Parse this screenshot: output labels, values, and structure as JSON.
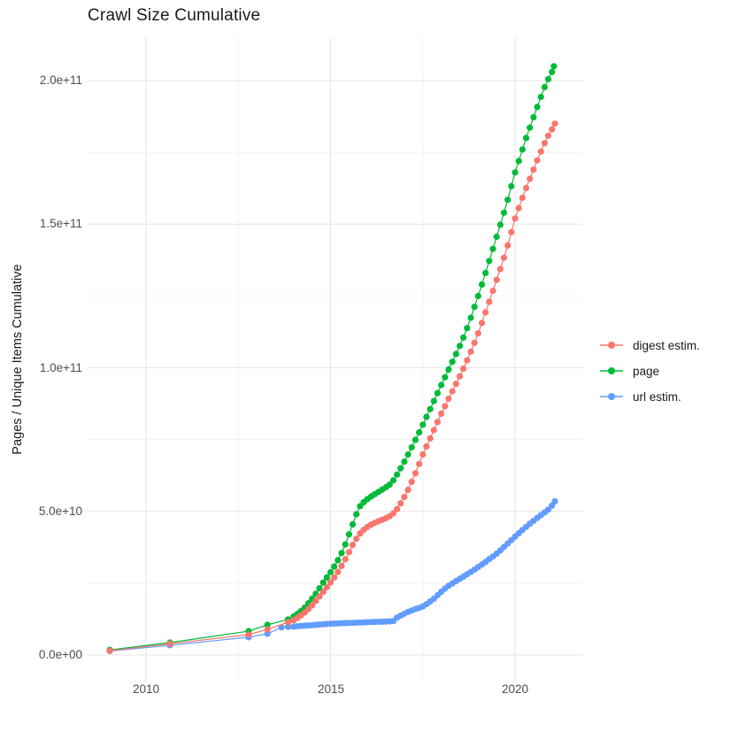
{
  "title": "Crawl Size Cumulative",
  "legend": {
    "items": [
      {
        "label": "digest estim.",
        "color": "#F8766D"
      },
      {
        "label": "page",
        "color": "#00BA38"
      },
      {
        "label": "url estim.",
        "color": "#619CFF"
      }
    ]
  },
  "chart_data": {
    "type": "line",
    "title": "Crawl Size Cumulative",
    "xlabel": "",
    "ylabel": "Pages / Unique Items Cumulative",
    "x_unit": "year",
    "y_values_unit": "1e9 (points stored as [year, value-in-billions])",
    "xlim": [
      2008.4,
      2021.8
    ],
    "ylim": [
      0,
      215
    ],
    "grid": true,
    "legend_position": "right",
    "x_ticks_major": [
      2010,
      2015,
      2020
    ],
    "x_tick_labels": [
      "2010",
      "2015",
      "2020"
    ],
    "x_ticks_minor": [
      2012.5,
      2017.5
    ],
    "y_ticks_major": [
      0,
      50,
      100,
      150,
      200
    ],
    "y_tick_labels": [
      "0.0e+00",
      "5.0e+10",
      "1.0e+11",
      "1.5e+11",
      "2.0e+11"
    ],
    "y_ticks_minor": [
      25,
      75,
      125,
      175
    ],
    "series": [
      {
        "name": "digest estim.",
        "color": "#F8766D",
        "points": [
          [
            2009.02,
            1.5
          ],
          [
            2010.65,
            3.9
          ],
          [
            2012.78,
            7.1
          ],
          [
            2013.29,
            8.9
          ],
          [
            2013.85,
            11.4
          ],
          [
            2014.0,
            12.1
          ],
          [
            2014.1,
            12.9
          ],
          [
            2014.2,
            13.8
          ],
          [
            2014.3,
            14.8
          ],
          [
            2014.4,
            16.0
          ],
          [
            2014.5,
            17.3
          ],
          [
            2014.6,
            18.8
          ],
          [
            2014.7,
            20.4
          ],
          [
            2014.8,
            22.0
          ],
          [
            2014.9,
            23.6
          ],
          [
            2015.0,
            25.3
          ],
          [
            2015.1,
            27.0
          ],
          [
            2015.2,
            28.9
          ],
          [
            2015.3,
            31.0
          ],
          [
            2015.4,
            33.3
          ],
          [
            2015.5,
            35.8
          ],
          [
            2015.6,
            38.3
          ],
          [
            2015.7,
            40.5
          ],
          [
            2015.8,
            42.3
          ],
          [
            2015.9,
            43.6
          ],
          [
            2016.0,
            44.6
          ],
          [
            2016.1,
            45.4
          ],
          [
            2016.2,
            46.0
          ],
          [
            2016.3,
            46.6
          ],
          [
            2016.4,
            47.1
          ],
          [
            2016.5,
            47.6
          ],
          [
            2016.6,
            48.3
          ],
          [
            2016.7,
            49.3
          ],
          [
            2016.8,
            50.8
          ],
          [
            2016.9,
            52.8
          ],
          [
            2017.0,
            55.0
          ],
          [
            2017.1,
            57.5
          ],
          [
            2017.2,
            60.3
          ],
          [
            2017.3,
            63.3
          ],
          [
            2017.4,
            66.5
          ],
          [
            2017.5,
            69.8
          ],
          [
            2017.6,
            72.6
          ],
          [
            2017.7,
            75.4
          ],
          [
            2017.8,
            78.3
          ],
          [
            2017.9,
            81.1
          ],
          [
            2018.0,
            84.0
          ],
          [
            2018.1,
            86.6
          ],
          [
            2018.2,
            89.2
          ],
          [
            2018.3,
            91.8
          ],
          [
            2018.4,
            94.4
          ],
          [
            2018.5,
            97.0
          ],
          [
            2018.6,
            99.7
          ],
          [
            2018.7,
            102.6
          ],
          [
            2018.8,
            105.6
          ],
          [
            2018.9,
            108.7
          ],
          [
            2019.0,
            112.0
          ],
          [
            2019.1,
            115.6
          ],
          [
            2019.2,
            119.3
          ],
          [
            2019.3,
            123.0
          ],
          [
            2019.4,
            126.8
          ],
          [
            2019.5,
            130.6
          ],
          [
            2019.6,
            134.4
          ],
          [
            2019.7,
            138.3
          ],
          [
            2019.8,
            142.6
          ],
          [
            2019.9,
            147.2
          ],
          [
            2020.0,
            152.0
          ],
          [
            2020.1,
            155.6
          ],
          [
            2020.2,
            159.2
          ],
          [
            2020.3,
            162.6
          ],
          [
            2020.4,
            165.8
          ],
          [
            2020.5,
            169.0
          ],
          [
            2020.6,
            172.2
          ],
          [
            2020.7,
            175.3
          ],
          [
            2020.8,
            178.2
          ],
          [
            2020.9,
            180.8
          ],
          [
            2021.0,
            183.0
          ],
          [
            2021.08,
            185.0
          ]
        ]
      },
      {
        "name": "page",
        "color": "#00BA38",
        "points": [
          [
            2009.02,
            1.8
          ],
          [
            2010.65,
            4.3
          ],
          [
            2012.78,
            8.3
          ],
          [
            2013.29,
            10.5
          ],
          [
            2013.85,
            12.4
          ],
          [
            2014.0,
            13.4
          ],
          [
            2014.1,
            14.3
          ],
          [
            2014.2,
            15.3
          ],
          [
            2014.3,
            16.5
          ],
          [
            2014.4,
            18.0
          ],
          [
            2014.5,
            19.6
          ],
          [
            2014.6,
            21.3
          ],
          [
            2014.7,
            23.2
          ],
          [
            2014.8,
            25.2
          ],
          [
            2014.9,
            27.0
          ],
          [
            2015.0,
            28.8
          ],
          [
            2015.1,
            30.8
          ],
          [
            2015.2,
            33.0
          ],
          [
            2015.3,
            35.5
          ],
          [
            2015.4,
            38.5
          ],
          [
            2015.5,
            42.0
          ],
          [
            2015.6,
            45.5
          ],
          [
            2015.7,
            49.0
          ],
          [
            2015.8,
            51.8
          ],
          [
            2015.9,
            53.2
          ],
          [
            2016.0,
            54.3
          ],
          [
            2016.1,
            55.2
          ],
          [
            2016.2,
            56.0
          ],
          [
            2016.3,
            56.8
          ],
          [
            2016.4,
            57.6
          ],
          [
            2016.5,
            58.4
          ],
          [
            2016.6,
            59.3
          ],
          [
            2016.7,
            60.8
          ],
          [
            2016.8,
            62.8
          ],
          [
            2016.9,
            65.0
          ],
          [
            2017.0,
            67.3
          ],
          [
            2017.1,
            69.8
          ],
          [
            2017.2,
            72.3
          ],
          [
            2017.3,
            74.9
          ],
          [
            2017.4,
            77.5
          ],
          [
            2017.5,
            80.2
          ],
          [
            2017.6,
            82.9
          ],
          [
            2017.7,
            85.6
          ],
          [
            2017.8,
            88.4
          ],
          [
            2017.9,
            91.2
          ],
          [
            2018.0,
            94.0
          ],
          [
            2018.1,
            96.7
          ],
          [
            2018.2,
            99.4
          ],
          [
            2018.3,
            102.1
          ],
          [
            2018.4,
            104.8
          ],
          [
            2018.5,
            107.6
          ],
          [
            2018.6,
            110.5
          ],
          [
            2018.7,
            113.8
          ],
          [
            2018.8,
            117.4
          ],
          [
            2018.9,
            121.2
          ],
          [
            2019.0,
            125.0
          ],
          [
            2019.1,
            129.0
          ],
          [
            2019.2,
            133.0
          ],
          [
            2019.3,
            137.2
          ],
          [
            2019.4,
            141.4
          ],
          [
            2019.5,
            145.6
          ],
          [
            2019.6,
            149.8
          ],
          [
            2019.7,
            154.0
          ],
          [
            2019.8,
            158.5
          ],
          [
            2019.9,
            163.2
          ],
          [
            2020.0,
            168.0
          ],
          [
            2020.1,
            172.0
          ],
          [
            2020.2,
            176.0
          ],
          [
            2020.3,
            180.0
          ],
          [
            2020.4,
            183.6
          ],
          [
            2020.5,
            187.2
          ],
          [
            2020.6,
            190.8
          ],
          [
            2020.7,
            194.3
          ],
          [
            2020.8,
            197.7
          ],
          [
            2020.9,
            200.5
          ],
          [
            2021.0,
            203.0
          ],
          [
            2021.05,
            205.0
          ]
        ]
      },
      {
        "name": "url estim.",
        "color": "#619CFF",
        "points": [
          [
            2009.02,
            1.4
          ],
          [
            2010.65,
            3.4
          ],
          [
            2012.78,
            6.2
          ],
          [
            2013.29,
            7.4
          ],
          [
            2013.67,
            9.6
          ],
          [
            2013.85,
            9.8
          ],
          [
            2014.0,
            9.9
          ],
          [
            2014.1,
            10.0
          ],
          [
            2014.2,
            10.1
          ],
          [
            2014.3,
            10.2
          ],
          [
            2014.4,
            10.3
          ],
          [
            2014.5,
            10.4
          ],
          [
            2014.6,
            10.5
          ],
          [
            2014.7,
            10.6
          ],
          [
            2014.8,
            10.7
          ],
          [
            2014.9,
            10.8
          ],
          [
            2015.0,
            10.9
          ],
          [
            2015.1,
            10.95
          ],
          [
            2015.2,
            11.0
          ],
          [
            2015.3,
            11.05
          ],
          [
            2015.4,
            11.1
          ],
          [
            2015.5,
            11.15
          ],
          [
            2015.6,
            11.2
          ],
          [
            2015.7,
            11.25
          ],
          [
            2015.8,
            11.3
          ],
          [
            2015.9,
            11.35
          ],
          [
            2016.0,
            11.4
          ],
          [
            2016.1,
            11.45
          ],
          [
            2016.2,
            11.5
          ],
          [
            2016.3,
            11.55
          ],
          [
            2016.4,
            11.6
          ],
          [
            2016.5,
            11.65
          ],
          [
            2016.6,
            11.7
          ],
          [
            2016.7,
            11.8
          ],
          [
            2016.8,
            13.0
          ],
          [
            2016.9,
            13.7
          ],
          [
            2017.0,
            14.4
          ],
          [
            2017.1,
            15.0
          ],
          [
            2017.2,
            15.5
          ],
          [
            2017.3,
            16.0
          ],
          [
            2017.4,
            16.4
          ],
          [
            2017.5,
            16.9
          ],
          [
            2017.6,
            17.7
          ],
          [
            2017.7,
            18.6
          ],
          [
            2017.8,
            19.6
          ],
          [
            2017.9,
            20.8
          ],
          [
            2018.0,
            22.0
          ],
          [
            2018.1,
            23.1
          ],
          [
            2018.2,
            24.1
          ],
          [
            2018.3,
            24.9
          ],
          [
            2018.4,
            25.7
          ],
          [
            2018.5,
            26.5
          ],
          [
            2018.6,
            27.3
          ],
          [
            2018.7,
            28.1
          ],
          [
            2018.8,
            28.9
          ],
          [
            2018.9,
            29.7
          ],
          [
            2019.0,
            30.6
          ],
          [
            2019.1,
            31.5
          ],
          [
            2019.2,
            32.4
          ],
          [
            2019.3,
            33.4
          ],
          [
            2019.4,
            34.3
          ],
          [
            2019.5,
            35.3
          ],
          [
            2019.6,
            36.4
          ],
          [
            2019.7,
            37.6
          ],
          [
            2019.8,
            38.8
          ],
          [
            2019.9,
            40.0
          ],
          [
            2020.0,
            41.2
          ],
          [
            2020.1,
            42.4
          ],
          [
            2020.2,
            43.5
          ],
          [
            2020.3,
            44.6
          ],
          [
            2020.4,
            45.7
          ],
          [
            2020.5,
            46.7
          ],
          [
            2020.6,
            47.7
          ],
          [
            2020.7,
            48.7
          ],
          [
            2020.8,
            49.6
          ],
          [
            2020.9,
            50.6
          ],
          [
            2021.0,
            52.0
          ],
          [
            2021.08,
            53.5
          ]
        ]
      }
    ]
  }
}
